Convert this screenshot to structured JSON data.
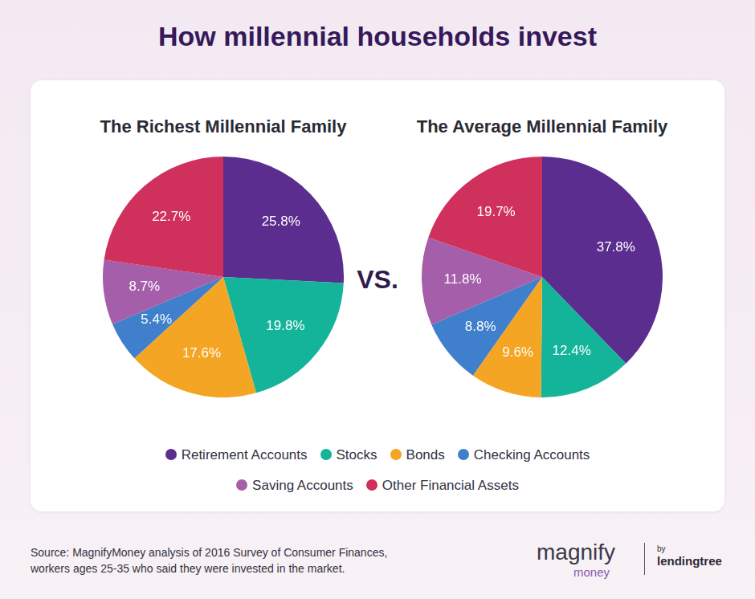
{
  "title": "How millennial households invest",
  "chart_data": [
    {
      "type": "pie",
      "title": "The Richest Millennial Family",
      "categories": [
        "Retirement Accounts",
        "Stocks",
        "Bonds",
        "Checking Accounts",
        "Saving Accounts",
        "Other Financial Assets"
      ],
      "values": [
        25.8,
        19.8,
        17.6,
        5.4,
        8.7,
        22.7
      ],
      "value_labels": [
        "25.8%",
        "19.8%",
        "17.6%",
        "5.4%",
        "8.7%",
        "22.7%"
      ],
      "colors": [
        "#5b2d8e",
        "#14b49a",
        "#f5a524",
        "#3f7fcb",
        "#a55ea9",
        "#d0305c"
      ],
      "data_labels": true,
      "legend": "bottom"
    },
    {
      "type": "pie",
      "title": "The Average Millennial Family",
      "categories": [
        "Retirement Accounts",
        "Stocks",
        "Bonds",
        "Checking Accounts",
        "Saving Accounts",
        "Other Financial Assets"
      ],
      "values": [
        37.8,
        12.4,
        9.6,
        8.8,
        11.8,
        19.7
      ],
      "value_labels": [
        "37.8%",
        "12.4%",
        "9.6%",
        "8.8%",
        "11.8%",
        "19.7%"
      ],
      "colors": [
        "#5b2d8e",
        "#14b49a",
        "#f5a524",
        "#3f7fcb",
        "#a55ea9",
        "#d0305c"
      ],
      "data_labels": true,
      "legend": "bottom"
    }
  ],
  "annotations": [
    "VS."
  ],
  "source": [
    "Source: MagnifyMoney analysis of 2016 Survey of Consumer Finances,",
    "workers ages 25-35 who said they were invested in the market."
  ],
  "logo": {
    "name": "magnify",
    "sub": "money",
    "by": "by",
    "partner": "lendingtree"
  }
}
